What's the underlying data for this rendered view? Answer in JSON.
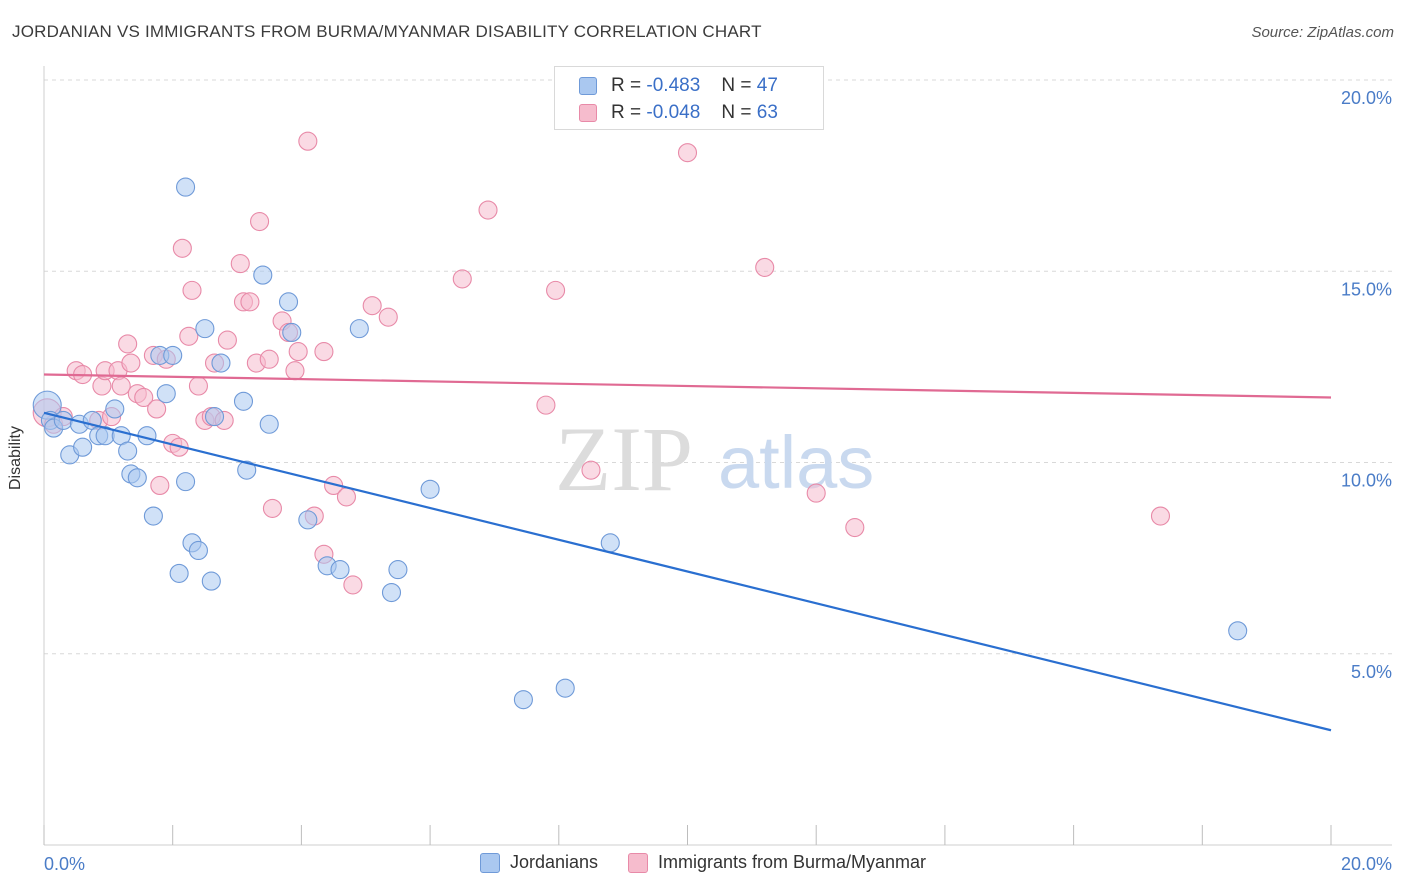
{
  "title": "JORDANIAN VS IMMIGRANTS FROM BURMA/MYANMAR DISABILITY CORRELATION CHART",
  "source": "Source: ZipAtlas.com",
  "watermark": {
    "zip": "ZIP",
    "atlas": "atlas"
  },
  "legend_top": {
    "rows": [
      {
        "r_label": "R =",
        "r_value": "-0.483",
        "n_label": "N =",
        "n_value": "47"
      },
      {
        "r_label": "R =",
        "r_value": "-0.048",
        "n_label": "N =",
        "n_value": "63"
      }
    ]
  },
  "colors": {
    "blue_fill": "#aac8f0",
    "blue_stroke": "#6f9ad8",
    "blue_line": "#2a6fd0",
    "pink_fill": "#f6bccd",
    "pink_stroke": "#e88aa8",
    "pink_line": "#e06a93",
    "grid": "#d8d8d8",
    "axis_text": "#4a7cc7"
  },
  "chart_data": {
    "type": "scatter",
    "title": "JORDANIAN VS IMMIGRANTS FROM BURMA/MYANMAR DISABILITY CORRELATION CHART",
    "xlabel": "",
    "ylabel": "Disability",
    "xlim": [
      0,
      20
    ],
    "ylim": [
      0,
      20
    ],
    "x_tick_labels": [
      "0.0%",
      "20.0%"
    ],
    "y_ticks": [
      5,
      10,
      15,
      20
    ],
    "y_tick_labels": [
      "5.0%",
      "10.0%",
      "15.0%",
      "20.0%"
    ],
    "grid": true,
    "legend_position": "bottom",
    "series": [
      {
        "name": "Jordanians",
        "color": "#aac8f0",
        "r": -0.483,
        "n": 47,
        "trend": {
          "x": [
            0,
            20
          ],
          "y": [
            11.3,
            3.0
          ]
        },
        "points": [
          [
            0.05,
            11.5
          ],
          [
            0.1,
            11.1
          ],
          [
            0.15,
            10.9
          ],
          [
            0.3,
            11.1
          ],
          [
            0.4,
            10.2
          ],
          [
            0.55,
            11.0
          ],
          [
            0.6,
            10.4
          ],
          [
            0.75,
            11.1
          ],
          [
            0.85,
            10.7
          ],
          [
            0.95,
            10.7
          ],
          [
            1.1,
            11.4
          ],
          [
            1.2,
            10.7
          ],
          [
            1.3,
            10.3
          ],
          [
            1.35,
            9.7
          ],
          [
            1.45,
            9.6
          ],
          [
            1.6,
            10.7
          ],
          [
            1.7,
            8.6
          ],
          [
            1.8,
            12.8
          ],
          [
            1.9,
            11.8
          ],
          [
            2.0,
            12.8
          ],
          [
            2.1,
            7.1
          ],
          [
            2.2,
            9.5
          ],
          [
            2.2,
            17.2
          ],
          [
            2.3,
            7.9
          ],
          [
            2.4,
            7.7
          ],
          [
            2.5,
            13.5
          ],
          [
            2.6,
            6.9
          ],
          [
            2.65,
            11.2
          ],
          [
            2.75,
            12.6
          ],
          [
            3.1,
            11.6
          ],
          [
            3.15,
            9.8
          ],
          [
            3.4,
            14.9
          ],
          [
            3.5,
            11.0
          ],
          [
            3.8,
            14.2
          ],
          [
            3.85,
            13.4
          ],
          [
            4.1,
            8.5
          ],
          [
            4.4,
            7.3
          ],
          [
            4.6,
            7.2
          ],
          [
            4.9,
            13.5
          ],
          [
            5.4,
            6.6
          ],
          [
            5.5,
            7.2
          ],
          [
            6.0,
            9.3
          ],
          [
            7.45,
            3.8
          ],
          [
            8.1,
            4.1
          ],
          [
            8.8,
            7.9
          ],
          [
            18.55,
            5.6
          ]
        ]
      },
      {
        "name": "Immigrants from Burma/Myanmar",
        "color": "#f6bccd",
        "r": -0.048,
        "n": 63,
        "trend": {
          "x": [
            0,
            20
          ],
          "y": [
            12.3,
            11.7
          ]
        },
        "points": [
          [
            0.05,
            11.3
          ],
          [
            0.15,
            11.0
          ],
          [
            0.3,
            11.2
          ],
          [
            0.5,
            12.4
          ],
          [
            0.6,
            12.3
          ],
          [
            0.85,
            11.1
          ],
          [
            0.9,
            12.0
          ],
          [
            0.95,
            12.4
          ],
          [
            1.05,
            11.2
          ],
          [
            1.15,
            12.4
          ],
          [
            1.2,
            12.0
          ],
          [
            1.3,
            13.1
          ],
          [
            1.35,
            12.6
          ],
          [
            1.45,
            11.8
          ],
          [
            1.55,
            11.7
          ],
          [
            1.7,
            12.8
          ],
          [
            1.75,
            11.4
          ],
          [
            1.8,
            9.4
          ],
          [
            1.9,
            12.7
          ],
          [
            2.0,
            10.5
          ],
          [
            2.1,
            10.4
          ],
          [
            2.15,
            15.6
          ],
          [
            2.25,
            13.3
          ],
          [
            2.3,
            14.5
          ],
          [
            2.4,
            12.0
          ],
          [
            2.5,
            11.1
          ],
          [
            2.6,
            11.2
          ],
          [
            2.65,
            12.6
          ],
          [
            2.8,
            11.1
          ],
          [
            2.85,
            13.2
          ],
          [
            3.05,
            15.2
          ],
          [
            3.1,
            14.2
          ],
          [
            3.2,
            14.2
          ],
          [
            3.3,
            12.6
          ],
          [
            3.35,
            16.3
          ],
          [
            3.5,
            12.7
          ],
          [
            3.55,
            8.8
          ],
          [
            3.7,
            13.7
          ],
          [
            3.8,
            13.4
          ],
          [
            3.9,
            12.4
          ],
          [
            3.95,
            12.9
          ],
          [
            4.1,
            18.4
          ],
          [
            4.2,
            8.6
          ],
          [
            4.35,
            7.6
          ],
          [
            4.35,
            12.9
          ],
          [
            4.5,
            9.4
          ],
          [
            4.7,
            9.1
          ],
          [
            4.8,
            6.8
          ],
          [
            5.1,
            14.1
          ],
          [
            5.35,
            13.8
          ],
          [
            6.5,
            14.8
          ],
          [
            6.9,
            16.6
          ],
          [
            7.8,
            11.5
          ],
          [
            7.95,
            14.5
          ],
          [
            8.5,
            9.8
          ],
          [
            10.0,
            18.1
          ],
          [
            11.2,
            15.1
          ],
          [
            12.0,
            9.2
          ],
          [
            12.6,
            8.3
          ],
          [
            17.35,
            8.6
          ]
        ]
      }
    ]
  }
}
